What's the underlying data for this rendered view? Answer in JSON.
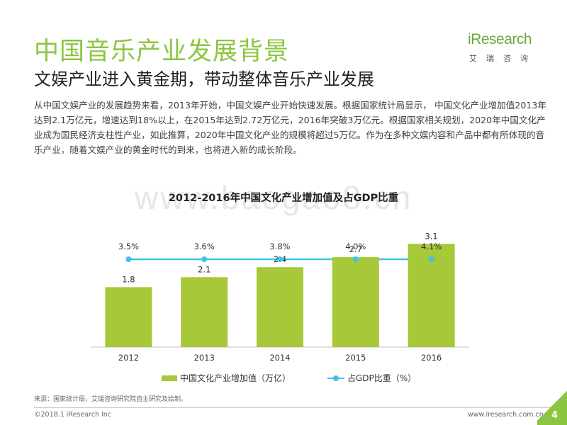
{
  "header": {
    "title": "中国音乐产业发展背景",
    "subtitle": "文娱产业进入黄金期，带动整体音乐产业发展"
  },
  "logo": {
    "text": "iResearch",
    "sub": "艾瑞咨询"
  },
  "body_text": "从中国文娱产业的发展趋势来看，2013年开始，中国文娱产业开始快速发展。根据国家统计局显示， 中国文化产业增加值2013年达到2.1万亿元，增速达到18%以上，在2015年达到2.72万亿元，2016年突破3万亿元。根据国家相关规划，2020年中国文化产业成为国民经济支柱性产业，如此推算，2020年中国文化产业的规模将超过5万亿。作为在多种文娱内容和产品中都有所体现的音乐产业，随着文娱产业的黄金时代的到来，也将进入新的成长阶段。",
  "watermark": "www.baogao8.cn",
  "chart_data": {
    "type": "bar",
    "title": "2012-2016年中国文化产业增加值及占GDP比重",
    "categories": [
      "2012",
      "2013",
      "2014",
      "2015",
      "2016"
    ],
    "series": [
      {
        "name": "中国文化产业增加值（万亿）",
        "type": "bar",
        "values": [
          1.8,
          2.1,
          2.4,
          2.7,
          3.1
        ],
        "labels": [
          "1.8",
          "2.1",
          "2.4",
          "2.7",
          "3.1"
        ],
        "color": "#a6c839"
      },
      {
        "name": "占GDP比重（%）",
        "type": "line",
        "values": [
          3.5,
          3.6,
          3.8,
          4.0,
          4.1
        ],
        "labels": [
          "3.5%",
          "3.6%",
          "3.8%",
          "4.0%",
          "4.1%"
        ],
        "color": "#3fc2e6"
      }
    ],
    "legend_position": "bottom",
    "grid": false
  },
  "footer": {
    "source": "来源：国家统计局，艾瑞咨询研究院自主研究及绘制。",
    "copyright": "©2018.1 iResearch Inc",
    "site": "www.iresearch.com.cn",
    "page": "4"
  }
}
